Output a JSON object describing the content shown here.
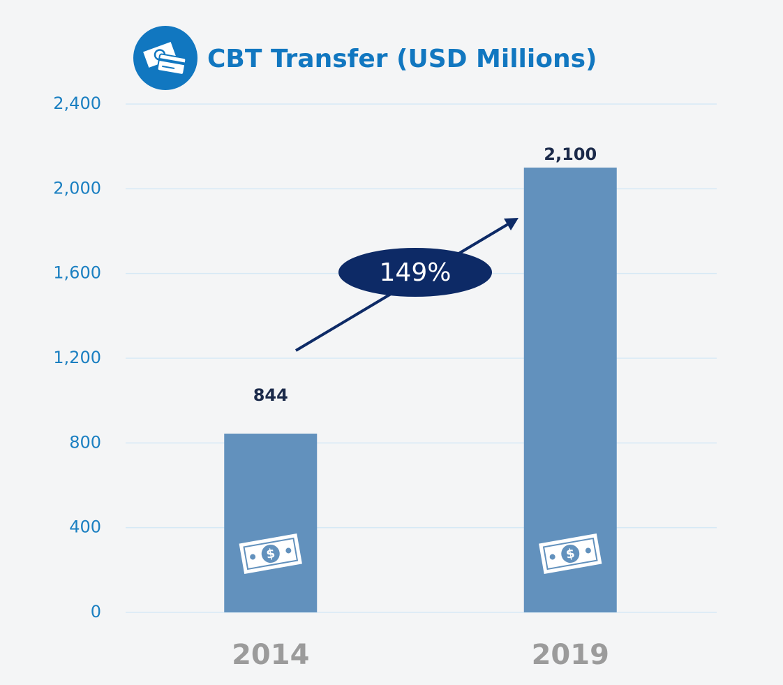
{
  "chart_data": {
    "type": "bar",
    "title": "CBT Transfer (USD Millions)",
    "categories": [
      "2014",
      "2019"
    ],
    "values": [
      844,
      2100
    ],
    "value_labels": [
      "844",
      "2,100"
    ],
    "color": "#6291bd",
    "ylim": [
      0,
      2400
    ],
    "yticks": [
      0,
      400,
      800,
      {
        "value": 1200,
        "label": "1,200"
      },
      {
        "value": 1600,
        "label": "1,600"
      },
      {
        "value": 2000,
        "label": "2,000"
      },
      {
        "value": 2400,
        "label": "2,400"
      }
    ],
    "grid": true,
    "annotation": "149%"
  }
}
